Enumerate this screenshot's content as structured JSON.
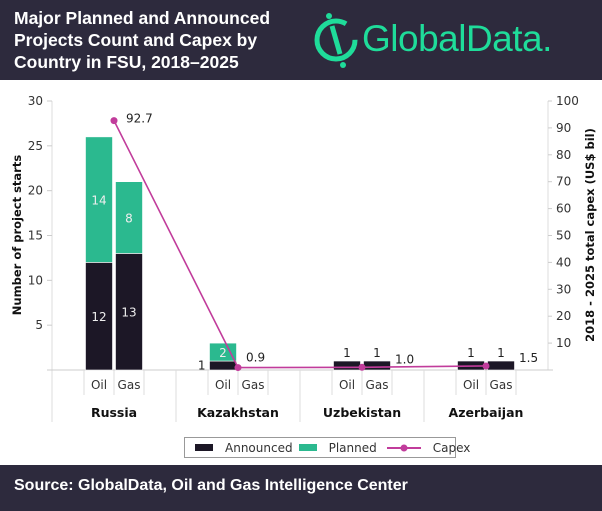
{
  "header": {
    "title": "Major Planned and Announced Projects Count and Capex by Country in FSU, 2018–2025",
    "logo_text": "GlobalData."
  },
  "footer": {
    "source": "Source: GlobalData, Oil and Gas Intelligence Center"
  },
  "legend": [
    {
      "label": "Announced",
      "color": "#1c1726"
    },
    {
      "label": "Planned",
      "color": "#2bb98f"
    },
    {
      "label": "Capex",
      "color": "#c13c9b"
    }
  ],
  "chart_data": {
    "type": "bar",
    "stacked": true,
    "categories": [
      "Russia",
      "Kazakhstan",
      "Uzbekistan",
      "Azerbaijan"
    ],
    "subcategories": [
      "Oil",
      "Gas"
    ],
    "series": [
      {
        "name": "Announced",
        "values": [
          [
            12,
            13
          ],
          [
            1,
            0
          ],
          [
            1,
            1
          ],
          [
            1,
            1
          ]
        ]
      },
      {
        "name": "Planned",
        "values": [
          [
            14,
            8
          ],
          [
            2,
            0
          ],
          [
            0,
            0
          ],
          [
            0,
            0
          ]
        ]
      }
    ],
    "line_series": {
      "name": "Capex",
      "values": [
        92.7,
        0.9,
        1.0,
        1.5
      ],
      "labels": [
        "92.7",
        "0.9",
        "1.0",
        "1.5"
      ]
    },
    "ylabel": "Number of project starts",
    "y2label": "2018 - 2025 total capex (US$ bil)",
    "ylim": [
      0,
      30
    ],
    "y2lim": [
      0,
      100
    ],
    "yticks": [
      5,
      10,
      15,
      20,
      25,
      30
    ],
    "y2ticks": [
      10,
      20,
      30,
      40,
      50,
      60,
      70,
      80,
      90,
      100
    ],
    "grid": false,
    "legend_position": "bottom"
  }
}
